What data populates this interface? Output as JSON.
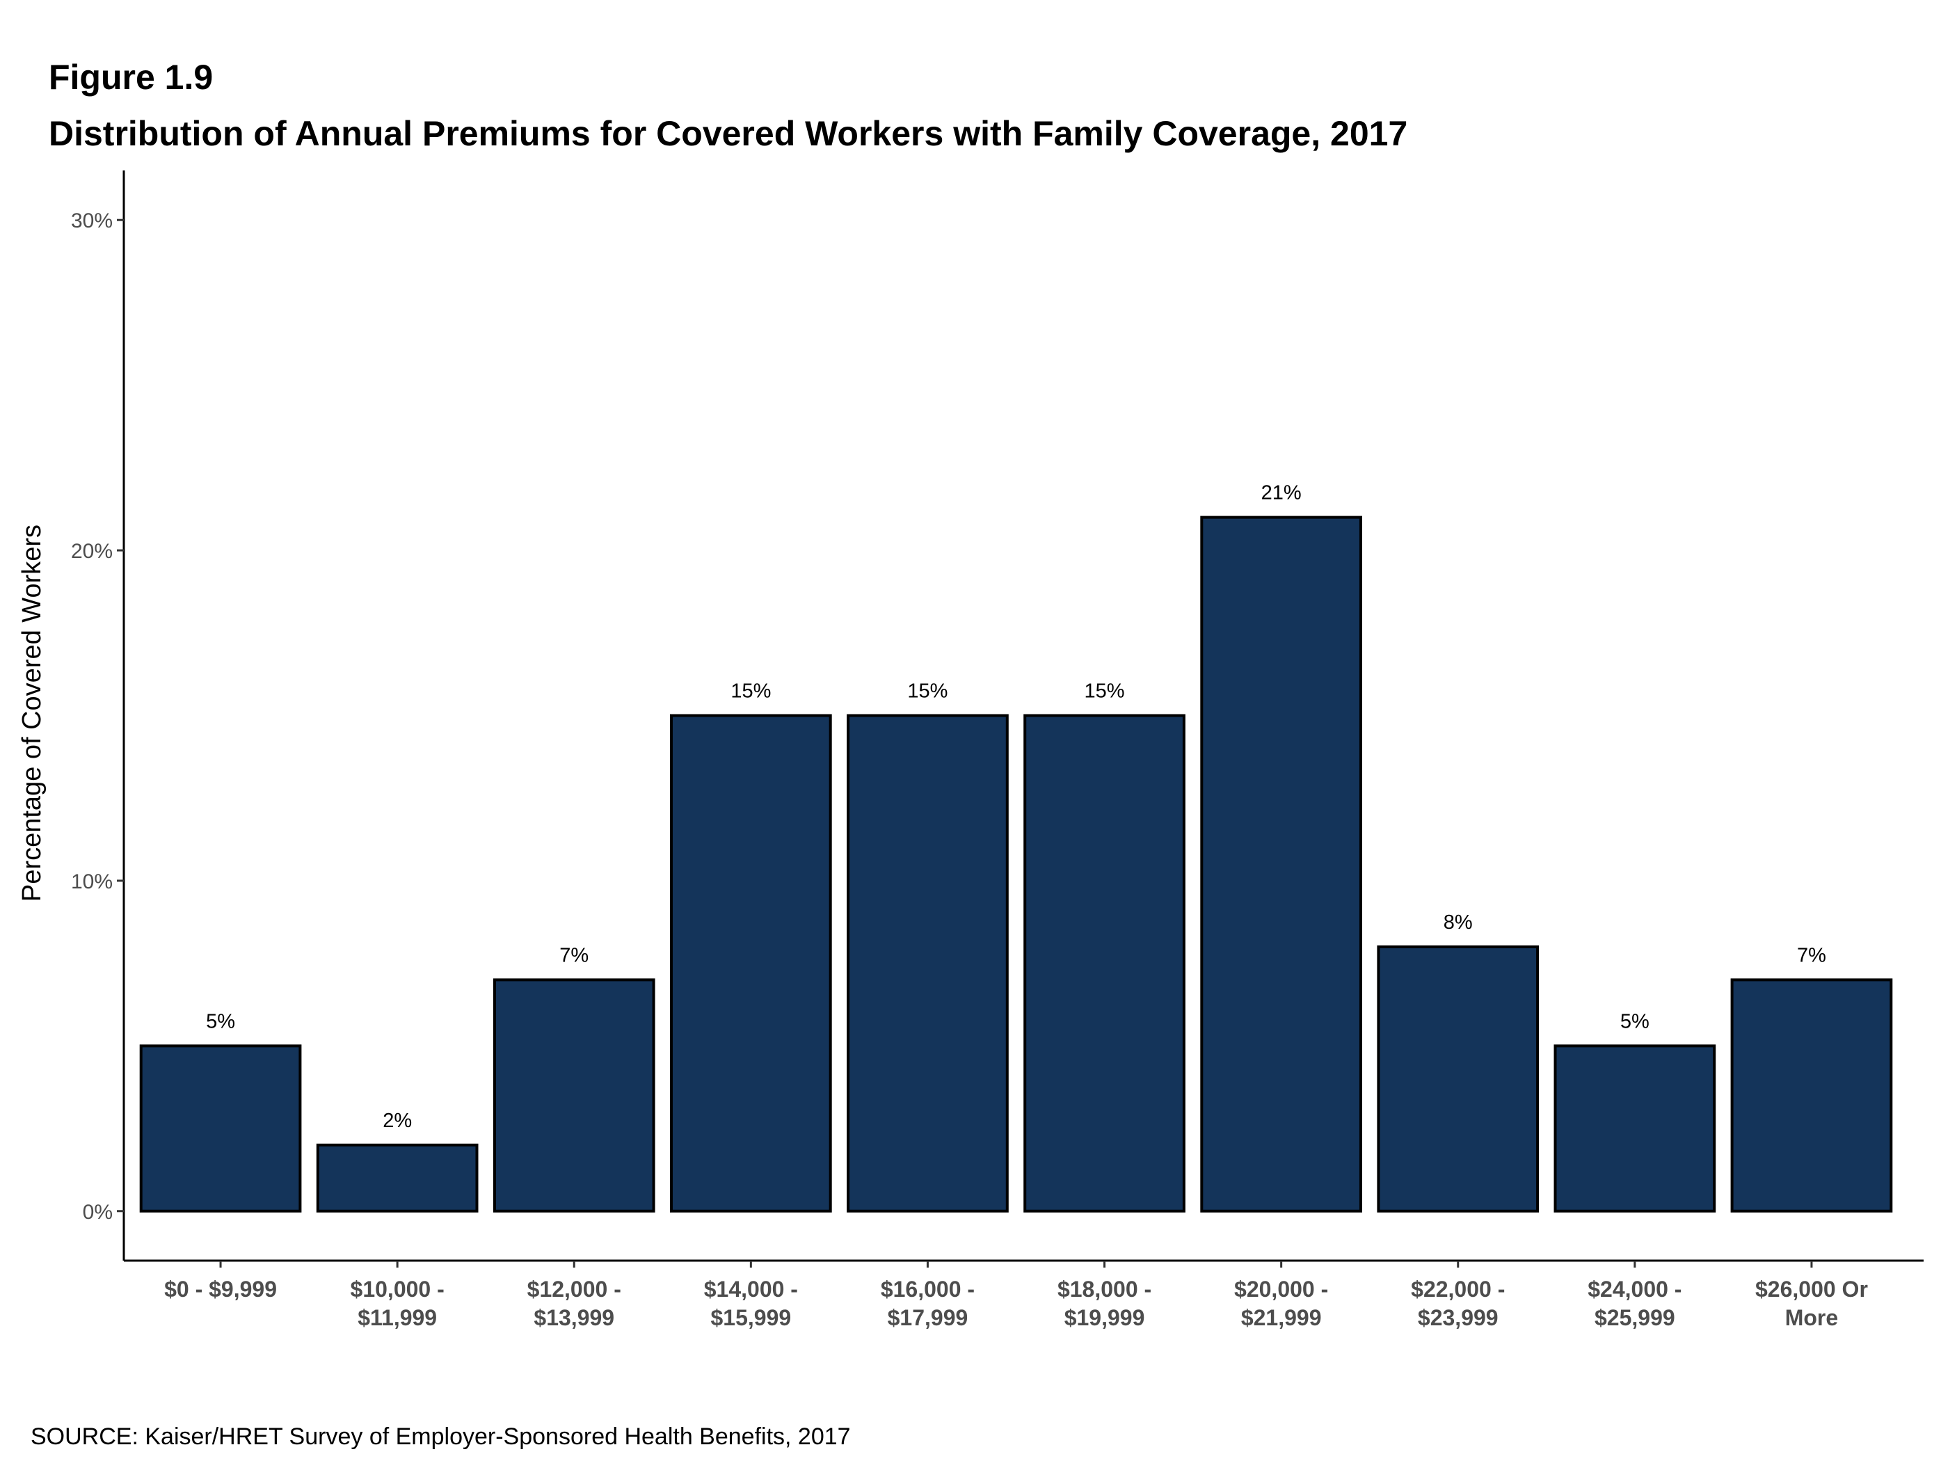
{
  "figure_label": "Figure 1.9",
  "source": "SOURCE: Kaiser/HRET Survey of Employer-Sponsored Health Benefits, 2017",
  "chart_data": {
    "type": "bar",
    "title": "Distribution of Annual Premiums for Covered Workers with Family Coverage, 2017",
    "xlabel": "",
    "ylabel": "Percentage of Covered Workers",
    "categories": [
      [
        "$0 - $9,999"
      ],
      [
        "$10,000 -",
        "$11,999"
      ],
      [
        "$12,000 -",
        "$13,999"
      ],
      [
        "$14,000 -",
        "$15,999"
      ],
      [
        "$16,000 -",
        "$17,999"
      ],
      [
        "$18,000 -",
        "$19,999"
      ],
      [
        "$20,000 -",
        "$21,999"
      ],
      [
        "$22,000 -",
        "$23,999"
      ],
      [
        "$24,000 -",
        "$25,999"
      ],
      [
        "$26,000 Or",
        "More"
      ]
    ],
    "values": [
      5,
      2,
      7,
      15,
      15,
      15,
      21,
      8,
      5,
      7
    ],
    "value_labels": [
      "5%",
      "2%",
      "7%",
      "15%",
      "15%",
      "15%",
      "21%",
      "8%",
      "5%",
      "7%"
    ],
    "yticks": [
      0,
      10,
      20,
      30
    ],
    "ytick_labels": [
      "0%",
      "10%",
      "20%",
      "30%"
    ],
    "ylim": [
      -1.5,
      31.5
    ],
    "grid": false,
    "bar_color": "#14345a",
    "bar_edge_color": "#000000"
  }
}
